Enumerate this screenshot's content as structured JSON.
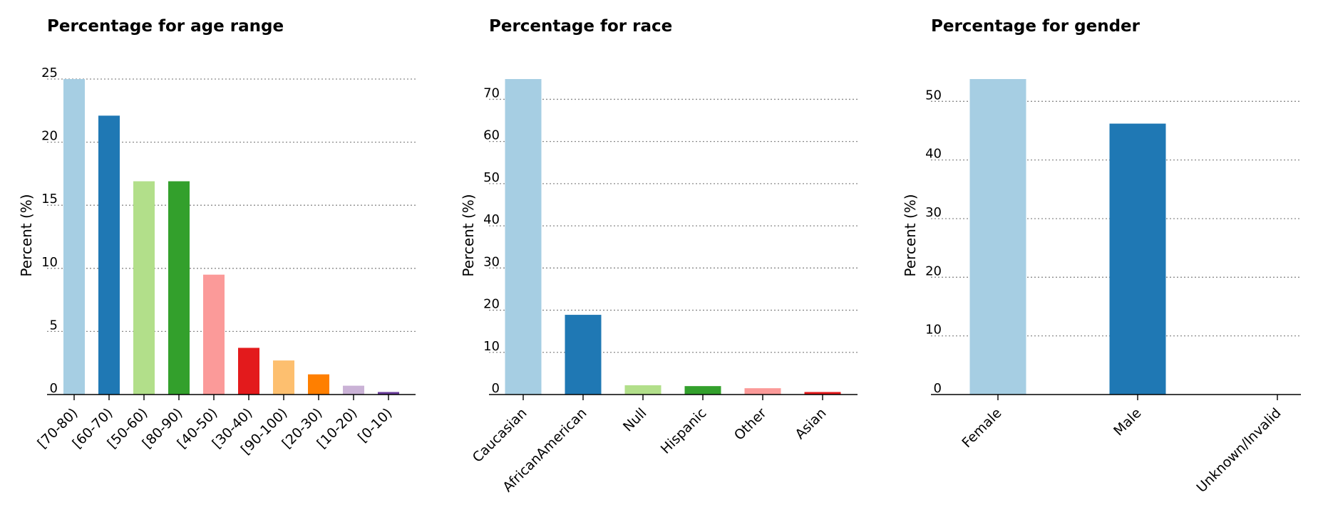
{
  "palette": [
    "#a6cee3",
    "#1f78b4",
    "#b2df8a",
    "#33a02c",
    "#fb9a99",
    "#e31a1c",
    "#fdbf6f",
    "#ff7f00",
    "#cab2d6",
    "#6a3d9a"
  ],
  "grid": "dotted",
  "chart_data": [
    {
      "type": "bar",
      "title": "Percentage for age range",
      "ylabel": "Percent (%)",
      "xlabel": "",
      "categories": [
        "[70-80)",
        "[60-70)",
        "[50-60)",
        "[80-90)",
        "[40-50)",
        "[30-40)",
        "[90-100)",
        "[20-30)",
        "[10-20)",
        "[0-10)"
      ],
      "values": [
        25.6,
        22.1,
        16.9,
        16.9,
        9.5,
        3.7,
        2.7,
        1.6,
        0.7,
        0.2
      ],
      "ylim": [
        0,
        25
      ],
      "yticks": [
        0,
        5,
        10,
        15,
        20,
        25
      ]
    },
    {
      "type": "bar",
      "title": "Percentage for race",
      "ylabel": "Percent (%)",
      "xlabel": "",
      "categories": [
        "Caucasian",
        "AfricanAmerican",
        "Null",
        "Hispanic",
        "Other",
        "Asian"
      ],
      "values": [
        74.8,
        18.9,
        2.2,
        2.0,
        1.5,
        0.6
      ],
      "ylim": [
        0,
        74.8
      ],
      "yticks": [
        0,
        10,
        20,
        30,
        40,
        50,
        60,
        70
      ]
    },
    {
      "type": "bar",
      "title": "Percentage for gender",
      "ylabel": "Percent (%)",
      "xlabel": "",
      "categories": [
        "Female",
        "Male",
        "Unknown/Invalid"
      ],
      "values": [
        53.8,
        46.2,
        0.003
      ],
      "ylim": [
        0,
        53.8
      ],
      "yticks": [
        0,
        10,
        20,
        30,
        40,
        50
      ]
    }
  ]
}
